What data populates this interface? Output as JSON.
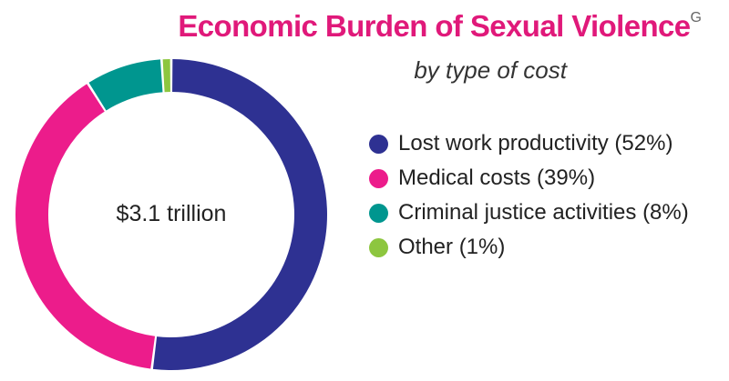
{
  "title": "Economic Burden of Sexual Violence",
  "title_superscript": "G",
  "subtitle": "by type of cost",
  "center_label": "$3.1 trillion",
  "colors": {
    "title": "#e0197a",
    "lost_work": "#2e3192",
    "medical": "#ec1c8b",
    "criminal": "#00968f",
    "other": "#8dc63f"
  },
  "chart_data": {
    "type": "pie",
    "title": "Economic Burden of Sexual Violence",
    "subtitle": "by type of cost",
    "center_label": "$3.1 trillion",
    "legend_position": "right",
    "slices": [
      {
        "label": "Lost work productivity (52%)",
        "value": 52,
        "color": "#2e3192"
      },
      {
        "label": "Medical costs (39%)",
        "value": 39,
        "color": "#ec1c8b"
      },
      {
        "label": "Criminal justice activities (8%)",
        "value": 8,
        "color": "#00968f"
      },
      {
        "label": "Other (1%)",
        "value": 1,
        "color": "#8dc63f"
      }
    ]
  }
}
